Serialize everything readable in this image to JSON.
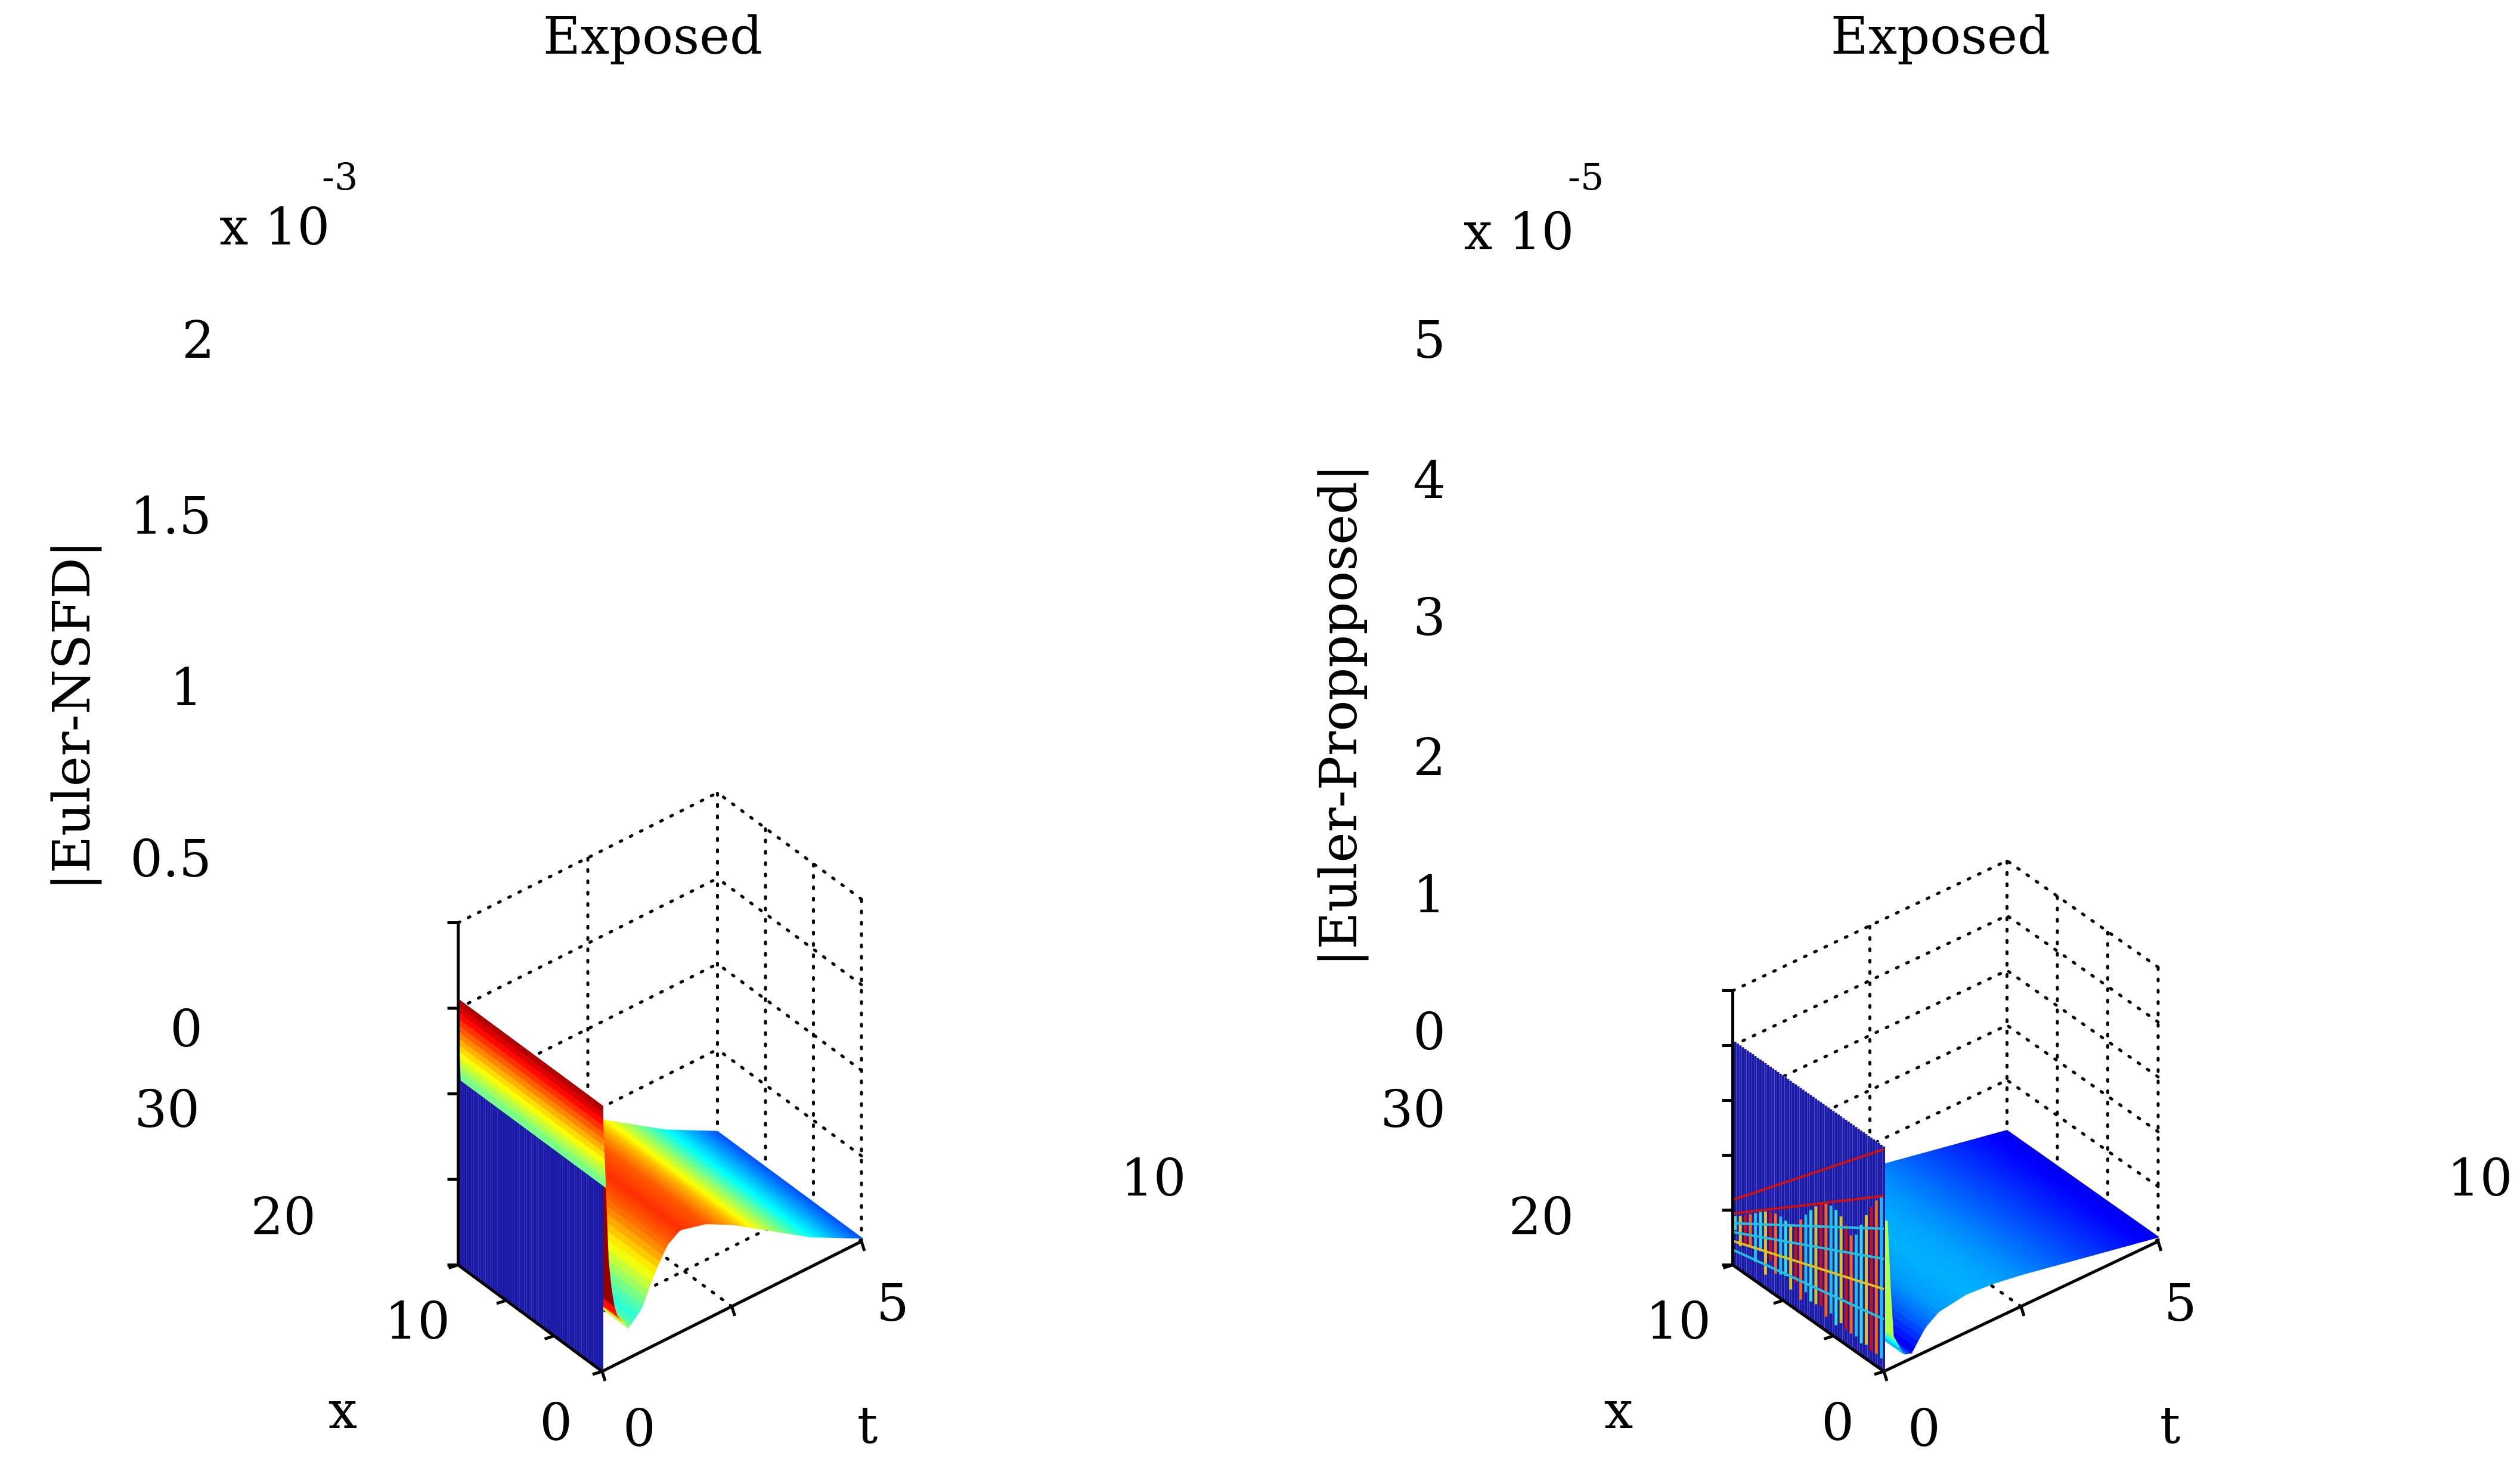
{
  "chart_data": [
    {
      "type": "surface",
      "title": "Exposed",
      "xlabel": "x",
      "ylabel": "t",
      "zlabel": "|Euler-NSFD|",
      "z_multiplier": "x 10",
      "z_exponent": "-3",
      "x_ticks": [
        "0",
        "10",
        "20",
        "30"
      ],
      "t_ticks": [
        "0",
        "5",
        "10"
      ],
      "z_ticks": [
        "0",
        "0.5",
        "1",
        "1.5",
        "2"
      ],
      "xlim": [
        0,
        30
      ],
      "tlim": [
        0,
        10
      ],
      "zlim": [
        0,
        2
      ],
      "wall_height": 1.55,
      "profile_t": [
        0,
        0.25,
        0.5,
        1,
        1.5,
        2,
        2.5,
        3,
        4,
        5,
        6,
        7,
        8,
        9,
        10
      ],
      "profile_z": [
        1.55,
        0.55,
        0.3,
        0.18,
        0.25,
        0.42,
        0.55,
        0.6,
        0.56,
        0.48,
        0.38,
        0.28,
        0.18,
        0.1,
        0.02
      ]
    },
    {
      "type": "surface",
      "title": "Exposed",
      "xlabel": "x",
      "ylabel": "t",
      "zlabel": "|Euler-Proppposed|",
      "z_multiplier": "x 10",
      "z_exponent": "-5",
      "x_ticks": [
        "0",
        "10",
        "20",
        "30"
      ],
      "t_ticks": [
        "0",
        "5",
        "10"
      ],
      "z_ticks": [
        "0",
        "1",
        "2",
        "3",
        "4",
        "5"
      ],
      "xlim": [
        0,
        30
      ],
      "tlim": [
        0,
        10
      ],
      "zlim": [
        0,
        5
      ],
      "wall_height": 4.1,
      "profile_t": [
        0,
        0.3,
        0.7,
        1,
        1.5,
        2,
        3,
        4,
        5,
        6,
        7,
        8,
        9,
        10
      ],
      "profile_z": [
        4.1,
        0.6,
        0.15,
        0.1,
        0.45,
        0.62,
        0.7,
        0.66,
        0.58,
        0.48,
        0.38,
        0.28,
        0.18,
        0.08
      ]
    }
  ]
}
